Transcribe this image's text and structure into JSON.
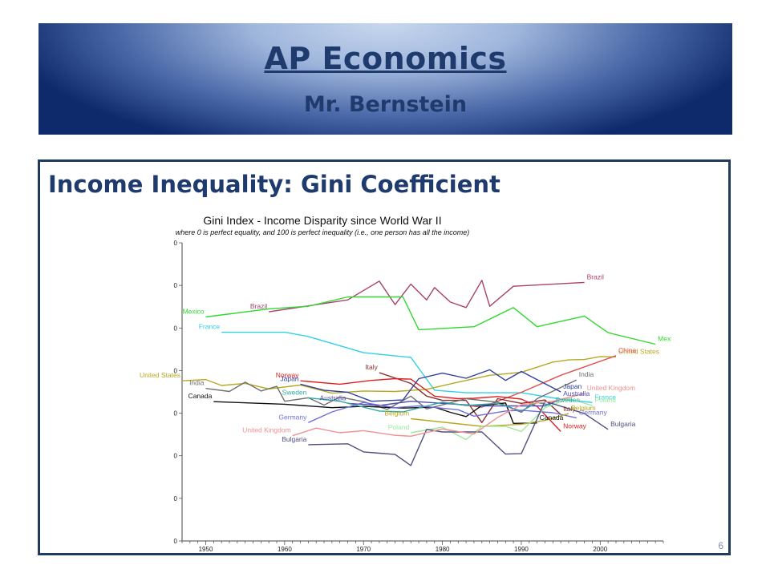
{
  "slide": {
    "title": "AP Economics",
    "subtitle": "Mr. Bernstein",
    "section_title": "Income Inequality:  Gini Coefficient",
    "page_number": "6"
  },
  "chart_data": {
    "type": "line",
    "title": "Gini Index - Income Disparity since World War II",
    "subtitle": "where 0 is perfect equality, and 100 is perfect inequality (i.e., one person has all the income)",
    "xlim": [
      1947,
      2008
    ],
    "ylim": [
      0,
      70
    ],
    "x_ticks": [
      "1950",
      "1960",
      "1970",
      "1980",
      "1990",
      "2000"
    ],
    "y_ticks": [
      "0",
      "0",
      "0",
      "0",
      "0",
      "0",
      "0",
      "0"
    ],
    "grid": false,
    "series": [
      {
        "name": "Brazil",
        "color": "#a8416b",
        "points": [
          [
            1958,
            53.8
          ],
          [
            1968,
            56.6
          ],
          [
            1972,
            61.0
          ],
          [
            1974,
            55.5
          ],
          [
            1976,
            60.3
          ],
          [
            1978,
            56.6
          ],
          [
            1979,
            59.5
          ],
          [
            1981,
            56.1
          ],
          [
            1983,
            54.8
          ],
          [
            1985,
            61.2
          ],
          [
            1986,
            55.1
          ],
          [
            1989,
            59.8
          ],
          [
            1998,
            60.7
          ]
        ]
      },
      {
        "name": "Mexico",
        "color": "#30d830",
        "points": [
          [
            1950,
            52.6
          ],
          [
            1958,
            54.5
          ],
          [
            1963,
            55.1
          ],
          [
            1968,
            57.3
          ],
          [
            1975,
            57.3
          ],
          [
            1977,
            49.6
          ],
          [
            1984,
            50.3
          ],
          [
            1989,
            54.8
          ],
          [
            1992,
            50.3
          ],
          [
            1998,
            52.8
          ],
          [
            2001,
            48.9
          ],
          [
            2007,
            46.2
          ]
        ]
      },
      {
        "name": "France",
        "color": "#30d0e8",
        "points": [
          [
            1952,
            49.0
          ],
          [
            1960,
            49.0
          ],
          [
            1963,
            48.0
          ],
          [
            1970,
            44.2
          ],
          [
            1976,
            43.1
          ],
          [
            1979,
            35.4
          ],
          [
            1983,
            34.8
          ],
          [
            1990,
            34.8
          ],
          [
            1995,
            33.3
          ],
          [
            1999,
            32.5
          ]
        ]
      },
      {
        "name": "United States",
        "color": "#b8a820",
        "points": [
          [
            1947,
            37.6
          ],
          [
            1950,
            37.9
          ],
          [
            1952,
            36.5
          ],
          [
            1955,
            37.0
          ],
          [
            1958,
            35.7
          ],
          [
            1962,
            36.6
          ],
          [
            1966,
            34.7
          ],
          [
            1970,
            35.2
          ],
          [
            1974,
            35.1
          ],
          [
            1978,
            35.6
          ],
          [
            1982,
            37.3
          ],
          [
            1986,
            38.9
          ],
          [
            1990,
            39.6
          ],
          [
            1994,
            42.0
          ],
          [
            1996,
            42.5
          ],
          [
            1998,
            42.6
          ],
          [
            2000,
            43.3
          ],
          [
            2002,
            43.2
          ]
        ]
      },
      {
        "name": "China",
        "color": "#e05050",
        "points": [
          [
            1980,
            32.5
          ],
          [
            1985,
            31.4
          ],
          [
            1990,
            34.9
          ],
          [
            1995,
            38.9
          ],
          [
            2002,
            43.5
          ]
        ]
      },
      {
        "name": "Italy",
        "color": "#8c3030",
        "points": [
          [
            1972,
            39.5
          ],
          [
            1976,
            37.0
          ],
          [
            1978,
            34.0
          ],
          [
            1980,
            33.0
          ],
          [
            1983,
            33.0
          ],
          [
            1985,
            27.8
          ],
          [
            1987,
            33.4
          ],
          [
            1990,
            32.3
          ],
          [
            1993,
            33.1
          ],
          [
            1995,
            29.7
          ]
        ]
      },
      {
        "name": "Norway",
        "color": "#e02020",
        "points": [
          [
            1962,
            37.6
          ],
          [
            1967,
            36.8
          ],
          [
            1971,
            37.7
          ],
          [
            1974,
            38.1
          ],
          [
            1976,
            38.0
          ],
          [
            1979,
            34.0
          ],
          [
            1982,
            33.4
          ],
          [
            1984,
            33.5
          ],
          [
            1987,
            33.9
          ],
          [
            1990,
            33.3
          ],
          [
            1992,
            31.6
          ],
          [
            1995,
            25.7
          ]
        ]
      },
      {
        "name": "India",
        "color": "#707070",
        "points": [
          [
            1950,
            35.8
          ],
          [
            1953,
            35.1
          ],
          [
            1955,
            37.3
          ],
          [
            1957,
            35.2
          ],
          [
            1959,
            36.3
          ],
          [
            1960,
            32.8
          ],
          [
            1963,
            33.6
          ],
          [
            1965,
            31.9
          ],
          [
            1967,
            33.8
          ],
          [
            1970,
            32.7
          ],
          [
            1973,
            30.9
          ],
          [
            1976,
            34.0
          ],
          [
            1978,
            31.0
          ],
          [
            1983,
            33.4
          ],
          [
            1987,
            32.6
          ],
          [
            1990,
            30.2
          ],
          [
            1992,
            33.4
          ],
          [
            1997,
            37.8
          ]
        ]
      },
      {
        "name": "Canada",
        "color": "#101010",
        "points": [
          [
            1951,
            32.7
          ],
          [
            1960,
            32.1
          ],
          [
            1966,
            31.3
          ],
          [
            1970,
            31.6
          ],
          [
            1975,
            31.2
          ],
          [
            1979,
            31.4
          ],
          [
            1981,
            30.2
          ],
          [
            1983,
            29.2
          ],
          [
            1985,
            31.8
          ],
          [
            1988,
            32.4
          ],
          [
            1989,
            27.6
          ],
          [
            1992,
            27.7
          ]
        ]
      },
      {
        "name": "Japan",
        "color": "#3040a0",
        "points": [
          [
            1962,
            36.8
          ],
          [
            1965,
            35.4
          ],
          [
            1968,
            34.9
          ],
          [
            1971,
            32.8
          ],
          [
            1975,
            33.1
          ],
          [
            1977,
            38.1
          ],
          [
            1980,
            39.4
          ],
          [
            1983,
            38.2
          ],
          [
            1986,
            40.2
          ],
          [
            1988,
            37.7
          ],
          [
            1990,
            39.8
          ],
          [
            1995,
            35.0
          ]
        ]
      },
      {
        "name": "Australia",
        "color": "#5050b0",
        "points": [
          [
            1968,
            32.3
          ],
          [
            1972,
            31.8
          ],
          [
            1976,
            32.8
          ],
          [
            1980,
            32.3
          ],
          [
            1985,
            31.7
          ],
          [
            1990,
            31.7
          ],
          [
            1993,
            31.7
          ],
          [
            1995,
            33.3
          ]
        ]
      },
      {
        "name": "Sweden",
        "color": "#30a8a0",
        "points": [
          [
            1963,
            33.6
          ],
          [
            1967,
            32.8
          ],
          [
            1972,
            30.5
          ],
          [
            1975,
            30.3
          ],
          [
            1980,
            32.6
          ],
          [
            1983,
            31.8
          ],
          [
            1987,
            32.3
          ],
          [
            1990,
            30.5
          ],
          [
            1992,
            32.5
          ],
          [
            1994,
            31.8
          ]
        ]
      },
      {
        "name": "Germany",
        "color": "#7070d8",
        "points": [
          [
            1963,
            27.8
          ],
          [
            1966,
            30.3
          ],
          [
            1970,
            32.5
          ],
          [
            1974,
            31.3
          ],
          [
            1977,
            31.7
          ],
          [
            1982,
            30.8
          ],
          [
            1984,
            29.3
          ],
          [
            1988,
            30.5
          ],
          [
            1990,
            30.7
          ],
          [
            1994,
            30.1
          ],
          [
            1997,
            28.9
          ]
        ]
      },
      {
        "name": "Belgium",
        "color": "#b8a820",
        "points": [
          [
            1976,
            28.7
          ],
          [
            1985,
            26.9
          ],
          [
            1990,
            27.4
          ],
          [
            1993,
            28.3
          ],
          [
            1996,
            29.9
          ]
        ]
      },
      {
        "name": "Poland",
        "color": "#a0e8a0",
        "points": [
          [
            1976,
            25.4
          ],
          [
            1980,
            26.7
          ],
          [
            1983,
            23.8
          ],
          [
            1985,
            26.9
          ],
          [
            1988,
            26.9
          ],
          [
            1990,
            25.7
          ],
          [
            1993,
            31.3
          ],
          [
            1996,
            33.4
          ],
          [
            1999,
            31.8
          ]
        ]
      },
      {
        "name": "Bulgaria",
        "color": "#505080",
        "points": [
          [
            1963,
            22.6
          ],
          [
            1968,
            22.8
          ],
          [
            1970,
            20.9
          ],
          [
            1972,
            20.6
          ],
          [
            1974,
            20.3
          ],
          [
            1976,
            17.7
          ],
          [
            1978,
            26.2
          ],
          [
            1980,
            25.6
          ],
          [
            1985,
            25.6
          ],
          [
            1988,
            20.4
          ],
          [
            1990,
            20.5
          ],
          [
            1993,
            32.8
          ],
          [
            1998,
            29.9
          ],
          [
            2001,
            26.2
          ]
        ]
      },
      {
        "name": "United Kingdom",
        "color": "#f09090",
        "points": [
          [
            1961,
            24.7
          ],
          [
            1964,
            26.5
          ],
          [
            1967,
            25.4
          ],
          [
            1970,
            25.9
          ],
          [
            1974,
            24.8
          ],
          [
            1976,
            24.6
          ],
          [
            1980,
            26.3
          ],
          [
            1984,
            25.1
          ],
          [
            1987,
            29.0
          ],
          [
            1990,
            32.0
          ],
          [
            1994,
            32.8
          ],
          [
            1998,
            34.6
          ]
        ]
      }
    ],
    "label_texts": {
      "Brazil": [
        "Brazil",
        "Brazil"
      ],
      "Mexico": [
        "Mexico",
        "Mexico"
      ],
      "France": [
        "France",
        "France"
      ],
      "United States": [
        "United States",
        "United States"
      ],
      "China": [
        "China"
      ],
      "Italy": [
        "Italy",
        "Italy"
      ],
      "Norway": [
        "Norway",
        "Norway"
      ],
      "India": [
        "India",
        "India"
      ],
      "Canada": [
        "Canada",
        "Canada"
      ],
      "Japan": [
        "Japan",
        "Japan"
      ],
      "Australia": [
        "Australia",
        "Australia"
      ],
      "Sweden": [
        "Sweden",
        "Sweden"
      ],
      "Germany": [
        "Germany",
        "Germany"
      ],
      "Belgium": [
        "Belgium",
        "Belgium"
      ],
      "Poland": [
        "Poland",
        "Poland"
      ],
      "Bulgaria": [
        "Bulgaria",
        "Bulgaria"
      ],
      "United Kingdom": [
        "United Kingdom",
        "United Kingdom"
      ]
    }
  }
}
